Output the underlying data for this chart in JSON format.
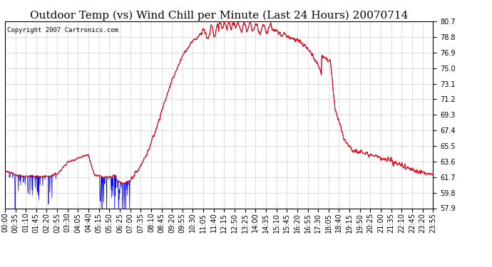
{
  "title": "Outdoor Temp (vs) Wind Chill per Minute (Last 24 Hours) 20070714",
  "copyright": "Copyright 2007 Cartronics.com",
  "y_ticks": [
    57.9,
    59.8,
    61.7,
    63.6,
    65.5,
    67.4,
    69.3,
    71.2,
    73.1,
    75.0,
    76.9,
    78.8,
    80.7
  ],
  "ylim": [
    57.9,
    80.7
  ],
  "x_labels": [
    "00:00",
    "00:35",
    "01:10",
    "01:45",
    "02:20",
    "02:55",
    "03:30",
    "04:05",
    "04:40",
    "05:15",
    "05:50",
    "06:25",
    "07:00",
    "07:35",
    "08:10",
    "08:45",
    "09:20",
    "09:55",
    "10:30",
    "11:05",
    "11:40",
    "12:15",
    "12:50",
    "13:25",
    "14:00",
    "14:35",
    "15:10",
    "15:45",
    "16:20",
    "16:55",
    "17:30",
    "18:05",
    "18:40",
    "19:15",
    "19:50",
    "20:25",
    "21:00",
    "21:35",
    "22:10",
    "22:45",
    "23:20",
    "23:55"
  ],
  "bg_color": "#ffffff",
  "plot_bg_color": "#ffffff",
  "grid_color": "#b0b0b0",
  "line_color_red": "#ff0000",
  "line_color_blue": "#0000ff",
  "title_fontsize": 11,
  "tick_fontsize": 7
}
